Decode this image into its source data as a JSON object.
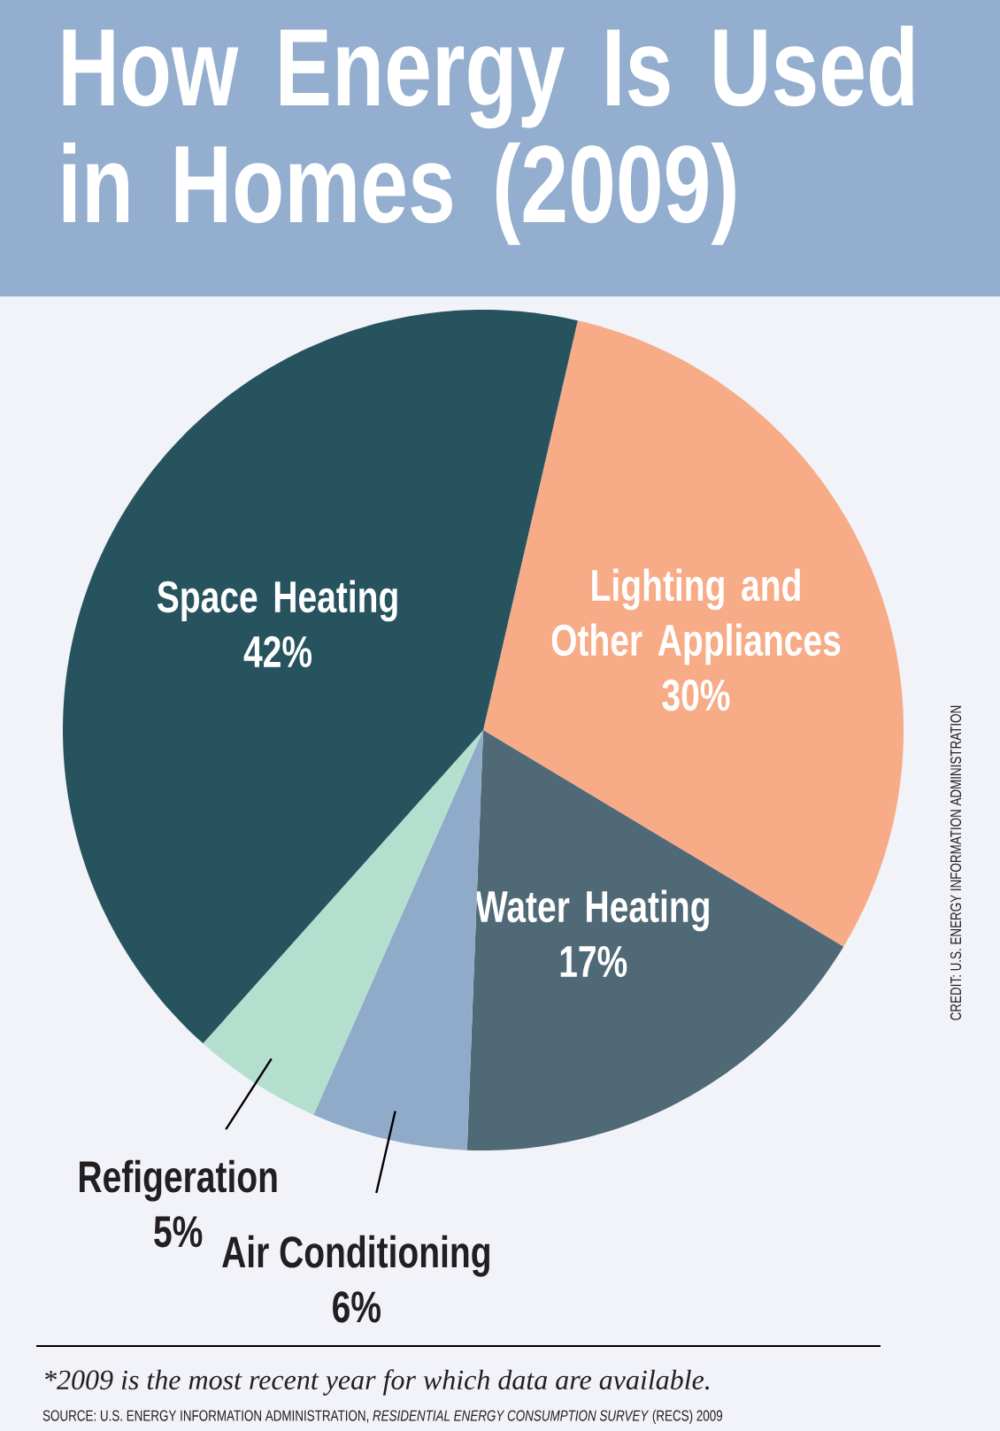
{
  "chart_data": {
    "type": "pie",
    "title": "How Energy Is Used in Homes (2009)",
    "categories": [
      "Lighting and Other Appliances",
      "Water Heating",
      "Air Conditioning",
      "Refigeration",
      "Space Heating"
    ],
    "values": [
      30,
      17,
      6,
      5,
      42
    ],
    "value_labels": [
      "30%",
      "17%",
      "6%",
      "5%",
      "42%"
    ],
    "colors": [
      "#f7ab87",
      "#506976",
      "#90abc9",
      "#b4dfcf",
      "#27535f"
    ],
    "annotations": [
      "*2009 is the most recent year for which data are available.",
      "SOURCE: U.S. ENERGY INFORMATION ADMINISTRATION, *RESIDENTIAL ENERGY CONSUMPTION SURVEY* (RECS) 2009",
      "CREDIT: U.S. ENERGY INFORMATION ADMINISTRATION"
    ]
  }
}
